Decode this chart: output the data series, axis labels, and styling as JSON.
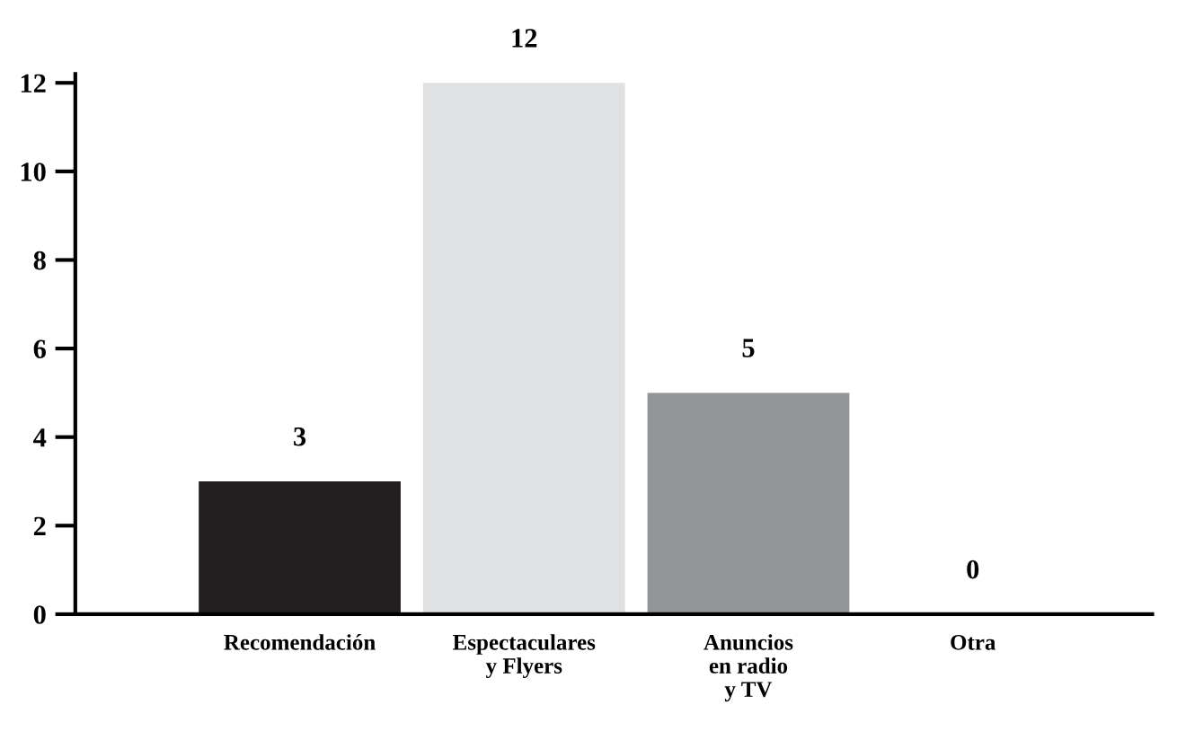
{
  "chart_data": {
    "type": "bar",
    "categories": [
      "Recomendación",
      "Espectaculares\ny Flyers",
      "Anuncios\nen radio\ny TV",
      "Otra"
    ],
    "values": [
      3,
      12,
      5,
      0
    ],
    "colors": [
      "#231f20",
      "#e0e1e3",
      "#939598",
      "#231f20"
    ],
    "ylim": [
      0,
      12.2
    ],
    "yticks": [
      0,
      2,
      4,
      6,
      8,
      10,
      12
    ],
    "data_labels": true,
    "grid": false,
    "legend": false
  }
}
